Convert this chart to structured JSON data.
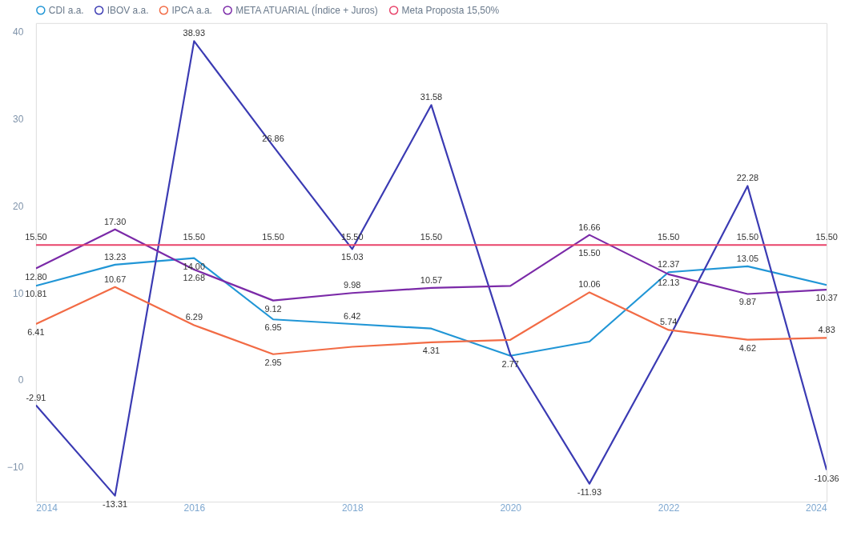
{
  "chart_data": {
    "type": "line",
    "x": [
      2014,
      2015,
      2016,
      2017,
      2018,
      2019,
      2020,
      2021,
      2022,
      2023,
      2024
    ],
    "series": [
      {
        "name": "CDI a.a.",
        "color": "#2196d6",
        "values": [
          10.81,
          13.23,
          14.0,
          6.95,
          6.42,
          5.9,
          2.77,
          4.4,
          12.37,
          13.05,
          10.9
        ],
        "value_labels": [
          "10.81",
          "13.23",
          "14.00",
          "6.95",
          "6.42",
          null,
          "2.77",
          null,
          "12.37",
          "13.05",
          null
        ]
      },
      {
        "name": "IBOV a.a.",
        "color": "#3b3bb3",
        "values": [
          -2.91,
          -13.31,
          38.93,
          26.86,
          15.03,
          31.58,
          2.9,
          -11.93,
          4.7,
          22.28,
          -10.36
        ],
        "value_labels": [
          "-2.91",
          "-13.31",
          "38.93",
          "26.86",
          "15.03",
          "31.58",
          null,
          "-11.93",
          null,
          "22.28",
          "-10.36"
        ]
      },
      {
        "name": "IPCA a.a.",
        "color": "#f26b45",
        "values": [
          6.41,
          10.67,
          6.29,
          2.95,
          3.8,
          4.31,
          4.6,
          10.06,
          5.74,
          4.62,
          4.83
        ],
        "value_labels": [
          "6.41",
          "10.67",
          "6.29",
          "2.95",
          null,
          "4.31",
          null,
          "10.06",
          "5.74",
          "4.62",
          "4.83"
        ]
      },
      {
        "name": "META ATUARIAL (Índice + Juros)",
        "color": "#7b2aa8",
        "values": [
          12.8,
          17.3,
          12.68,
          9.12,
          9.98,
          10.57,
          10.8,
          16.66,
          12.13,
          9.87,
          10.37
        ],
        "value_labels": [
          "12.80",
          "17.30",
          "12.68",
          "9.12",
          "9.98",
          "10.57",
          null,
          "16.66",
          "12.13",
          "9.87",
          "10.37"
        ]
      },
      {
        "name": "Meta Proposta 15,50%",
        "color": "#e8436a",
        "values": [
          15.5,
          15.5,
          15.5,
          15.5,
          15.5,
          15.5,
          15.5,
          15.5,
          15.5,
          15.5,
          15.5
        ],
        "value_labels": [
          "15.50",
          null,
          "15.50",
          "15.50",
          "15.50",
          "15.50",
          null,
          "15.50",
          "15.50",
          "15.50",
          "15.50"
        ]
      }
    ],
    "xlim": [
      2014,
      2024
    ],
    "xticks": [
      2014,
      2016,
      2018,
      2020,
      2022,
      2024
    ],
    "ylim": [
      -14,
      41
    ],
    "yticks": [
      -10,
      0,
      10,
      20,
      30,
      40
    ],
    "grid": false,
    "legend": "top left",
    "marker": "none",
    "line_style": "solid"
  }
}
